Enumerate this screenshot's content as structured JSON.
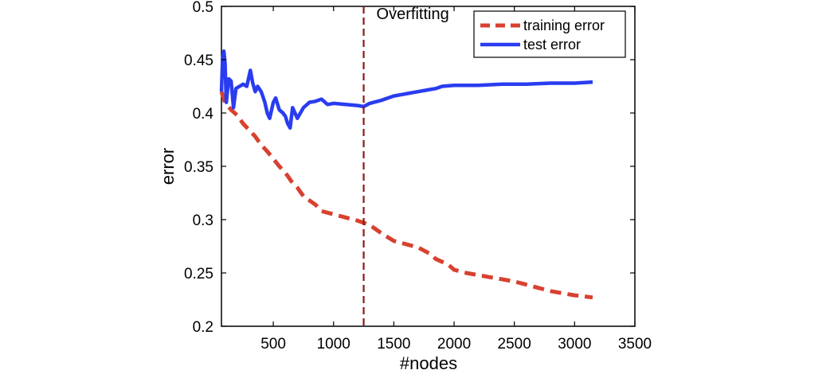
{
  "chart_data": {
    "type": "line",
    "title": "",
    "xlabel": "#nodes",
    "ylabel": "error",
    "xlim": [
      70,
      3500
    ],
    "ylim": [
      0.2,
      0.5
    ],
    "xticks": [
      500,
      1000,
      1500,
      2000,
      2500,
      3000,
      3500
    ],
    "xtick_labels": [
      "500",
      "1000",
      "1500",
      "2000",
      "2500",
      "3000",
      "3500"
    ],
    "yticks": [
      0.2,
      0.25,
      0.3,
      0.35,
      0.4,
      0.45,
      0.5
    ],
    "ytick_labels": [
      "0.2",
      "0.25",
      "0.3",
      "0.35",
      "0.4",
      "0.45",
      "0.5"
    ],
    "grid": false,
    "legend_position": "top-right",
    "series": [
      {
        "name": "training error",
        "color": "#d8412f",
        "style": "dashed",
        "points": [
          [
            70,
            0.42
          ],
          [
            100,
            0.41
          ],
          [
            150,
            0.403
          ],
          [
            200,
            0.398
          ],
          [
            250,
            0.39
          ],
          [
            300,
            0.384
          ],
          [
            350,
            0.378
          ],
          [
            400,
            0.37
          ],
          [
            450,
            0.364
          ],
          [
            500,
            0.357
          ],
          [
            550,
            0.35
          ],
          [
            600,
            0.344
          ],
          [
            650,
            0.336
          ],
          [
            700,
            0.33
          ],
          [
            750,
            0.322
          ],
          [
            800,
            0.318
          ],
          [
            850,
            0.314
          ],
          [
            900,
            0.308
          ],
          [
            1000,
            0.305
          ],
          [
            1100,
            0.302
          ],
          [
            1200,
            0.299
          ],
          [
            1300,
            0.295
          ],
          [
            1400,
            0.287
          ],
          [
            1500,
            0.28
          ],
          [
            1600,
            0.277
          ],
          [
            1700,
            0.274
          ],
          [
            1800,
            0.268
          ],
          [
            1850,
            0.263
          ],
          [
            1950,
            0.258
          ],
          [
            2000,
            0.253
          ],
          [
            2100,
            0.25
          ],
          [
            2200,
            0.248
          ],
          [
            2300,
            0.246
          ],
          [
            2400,
            0.244
          ],
          [
            2500,
            0.242
          ],
          [
            2600,
            0.239
          ],
          [
            2700,
            0.236
          ],
          [
            2800,
            0.233
          ],
          [
            2900,
            0.231
          ],
          [
            3000,
            0.229
          ],
          [
            3150,
            0.227
          ]
        ]
      },
      {
        "name": "test error",
        "color": "#2a3cf0",
        "style": "solid",
        "points": [
          [
            70,
            0.42
          ],
          [
            80,
            0.452
          ],
          [
            90,
            0.458
          ],
          [
            100,
            0.447
          ],
          [
            110,
            0.41
          ],
          [
            130,
            0.432
          ],
          [
            150,
            0.43
          ],
          [
            170,
            0.405
          ],
          [
            190,
            0.423
          ],
          [
            220,
            0.425
          ],
          [
            250,
            0.427
          ],
          [
            280,
            0.425
          ],
          [
            300,
            0.435
          ],
          [
            310,
            0.44
          ],
          [
            330,
            0.428
          ],
          [
            350,
            0.42
          ],
          [
            370,
            0.425
          ],
          [
            400,
            0.42
          ],
          [
            430,
            0.41
          ],
          [
            450,
            0.4
          ],
          [
            470,
            0.395
          ],
          [
            500,
            0.41
          ],
          [
            520,
            0.414
          ],
          [
            550,
            0.403
          ],
          [
            580,
            0.4
          ],
          [
            600,
            0.397
          ],
          [
            620,
            0.39
          ],
          [
            640,
            0.386
          ],
          [
            660,
            0.405
          ],
          [
            700,
            0.395
          ],
          [
            750,
            0.405
          ],
          [
            800,
            0.41
          ],
          [
            850,
            0.411
          ],
          [
            900,
            0.413
          ],
          [
            950,
            0.408
          ],
          [
            1000,
            0.409
          ],
          [
            1100,
            0.408
          ],
          [
            1200,
            0.407
          ],
          [
            1250,
            0.406
          ],
          [
            1300,
            0.409
          ],
          [
            1400,
            0.412
          ],
          [
            1500,
            0.416
          ],
          [
            1600,
            0.418
          ],
          [
            1700,
            0.42
          ],
          [
            1800,
            0.422
          ],
          [
            1850,
            0.423
          ],
          [
            1900,
            0.425
          ],
          [
            2000,
            0.426
          ],
          [
            2200,
            0.426
          ],
          [
            2400,
            0.427
          ],
          [
            2600,
            0.427
          ],
          [
            2800,
            0.428
          ],
          [
            3000,
            0.428
          ],
          [
            3150,
            0.429
          ]
        ]
      }
    ],
    "annotations": [
      {
        "text": "Overfitting",
        "vline_x": 1250,
        "color": "#8b1a1a",
        "style": "dashed"
      }
    ]
  }
}
